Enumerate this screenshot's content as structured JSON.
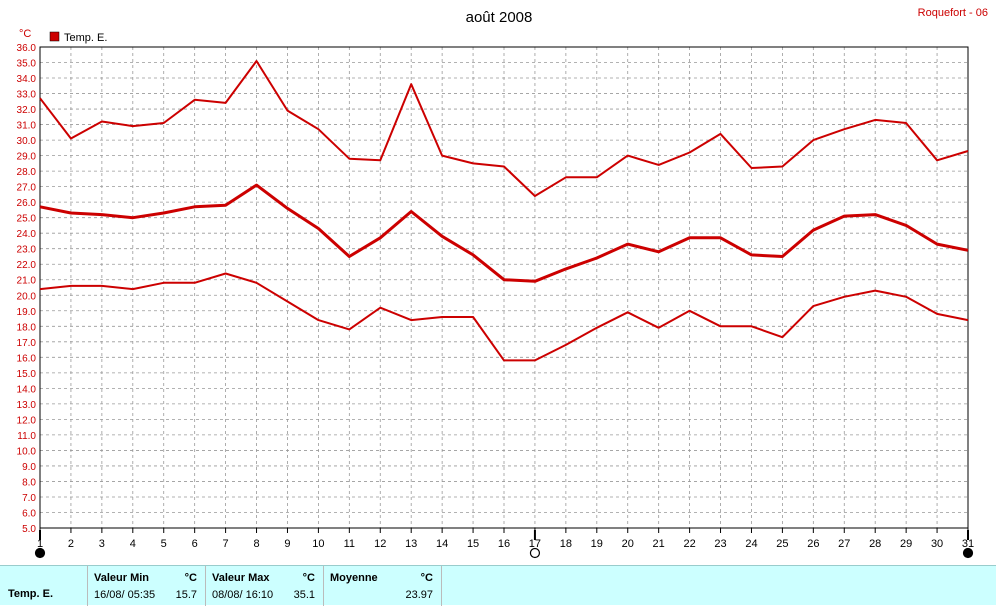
{
  "title": "août 2008",
  "station": "Roquefort - 06",
  "legend": {
    "label": "Temp. E.",
    "color": "#cc0000"
  },
  "y_unit": "°C",
  "colors": {
    "line": "#cc0000",
    "grid": "#999999",
    "stats_bg": "#ccffff"
  },
  "moon_markers": [
    {
      "day": 1,
      "icon": "new-moon-icon"
    },
    {
      "day": 17,
      "icon": "full-moon-icon"
    },
    {
      "day": 31,
      "icon": "new-moon-icon"
    }
  ],
  "stats": {
    "row_label": "Temp. E.",
    "min": {
      "header": "Valeur Min",
      "unit": "°C",
      "date": "16/08/  05:35",
      "value": "15.7"
    },
    "max": {
      "header": "Valeur Max",
      "unit": "°C",
      "date": "08/08/  16:10",
      "value": "35.1"
    },
    "avg": {
      "header": "Moyenne",
      "unit": "°C",
      "value": "23.97"
    }
  },
  "chart_data": {
    "type": "line",
    "title": "août 2008",
    "x": [
      1,
      2,
      3,
      4,
      5,
      6,
      7,
      8,
      9,
      10,
      11,
      12,
      13,
      14,
      15,
      16,
      17,
      18,
      19,
      20,
      21,
      22,
      23,
      24,
      25,
      26,
      27,
      28,
      29,
      30,
      31
    ],
    "xlim": [
      1,
      31
    ],
    "ylim": [
      5.0,
      36.0
    ],
    "y_tick_step": 1.0,
    "ylabel": "°C",
    "grid": true,
    "legend_position": "top-left",
    "series": [
      {
        "name": "max",
        "width": 2,
        "values": [
          32.7,
          30.1,
          31.2,
          30.9,
          31.1,
          32.6,
          32.4,
          35.1,
          31.9,
          30.7,
          28.8,
          28.7,
          33.6,
          29.0,
          28.5,
          28.3,
          26.4,
          27.6,
          27.6,
          29.0,
          28.4,
          29.2,
          30.4,
          28.2,
          28.3,
          30.0,
          30.7,
          31.3,
          31.1,
          28.7,
          29.3
        ]
      },
      {
        "name": "mean",
        "width": 3,
        "values": [
          25.7,
          25.3,
          25.2,
          25.0,
          25.3,
          25.7,
          25.8,
          27.1,
          25.6,
          24.3,
          22.5,
          23.7,
          25.4,
          23.8,
          22.6,
          21.0,
          20.9,
          21.7,
          22.4,
          23.3,
          22.8,
          23.7,
          23.7,
          22.6,
          22.5,
          24.2,
          25.1,
          25.2,
          24.5,
          23.3,
          22.9
        ]
      },
      {
        "name": "min",
        "width": 2,
        "values": [
          20.4,
          20.6,
          20.6,
          20.4,
          20.8,
          20.8,
          21.4,
          20.8,
          19.6,
          18.4,
          17.8,
          19.2,
          18.4,
          18.6,
          18.6,
          15.8,
          15.8,
          16.8,
          17.9,
          18.9,
          17.9,
          19.0,
          18.0,
          18.0,
          17.3,
          19.3,
          19.9,
          20.3,
          19.9,
          18.8,
          18.4
        ]
      }
    ]
  }
}
